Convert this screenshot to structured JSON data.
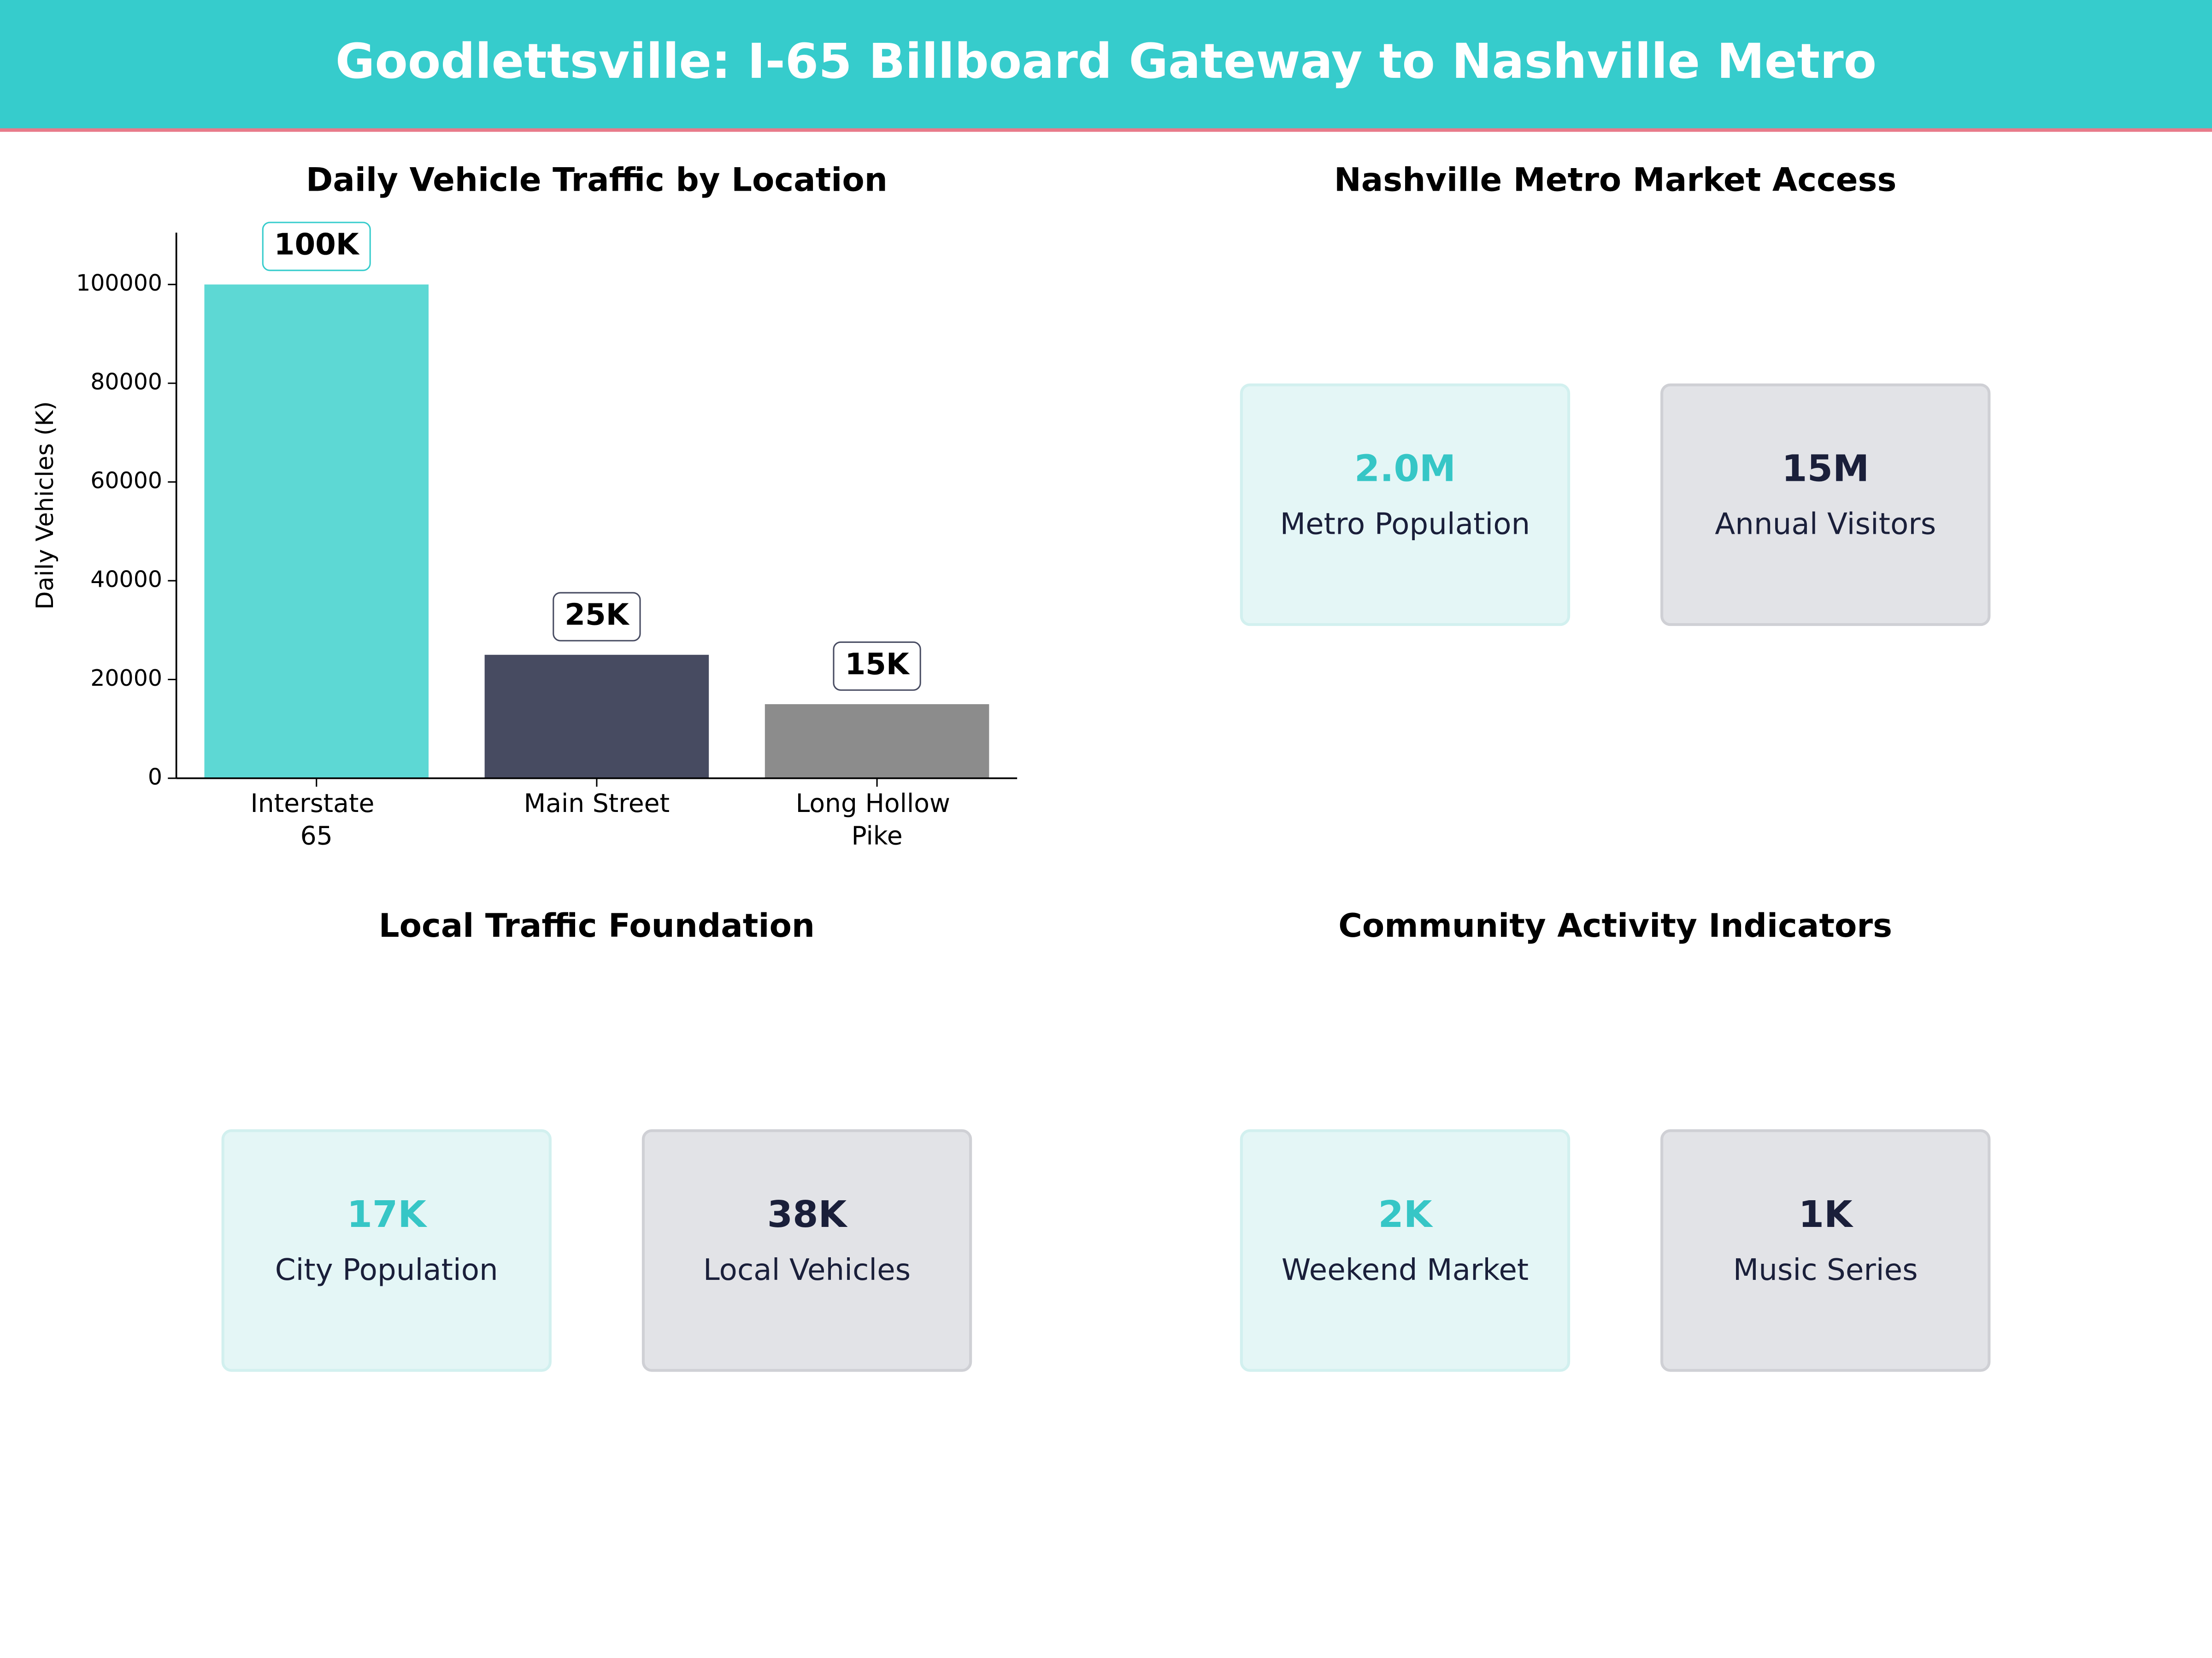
{
  "title": "Goodlettsville: I-65 Billboard Gateway to Nashville Metro",
  "chart_data": {
    "type": "bar",
    "title": "Daily Vehicle Traffic by Location",
    "y_label": "Daily Vehicles (K)",
    "categories": [
      "Interstate 65",
      "Main Street",
      "Long Hollow Pike"
    ],
    "values": [
      100000,
      25000,
      15000
    ],
    "value_labels": [
      "100K",
      "25K",
      "15K"
    ],
    "colors": [
      "#5dd8d4",
      "#474b61",
      "#8c8c8c"
    ],
    "ylim": [
      0,
      110500
    ],
    "yticks": [
      0,
      20000,
      40000,
      60000,
      80000,
      100000
    ],
    "grid": false
  },
  "kpi_panels": [
    {
      "title": "Nashville Metro Market Access",
      "cards": [
        {
          "value": "2.0M",
          "label": "Metro Population"
        },
        {
          "value": "15M",
          "label": "Annual Visitors"
        }
      ]
    },
    {
      "title": "Local Traffic Foundation",
      "cards": [
        {
          "value": "17K",
          "label": "City Population"
        },
        {
          "value": "38K",
          "label": "Local Vehicles"
        }
      ]
    },
    {
      "title": "Community Activity Indicators",
      "cards": [
        {
          "value": "2K",
          "label": "Weekend Market"
        },
        {
          "value": "1K",
          "label": "Music Series"
        }
      ]
    }
  ]
}
